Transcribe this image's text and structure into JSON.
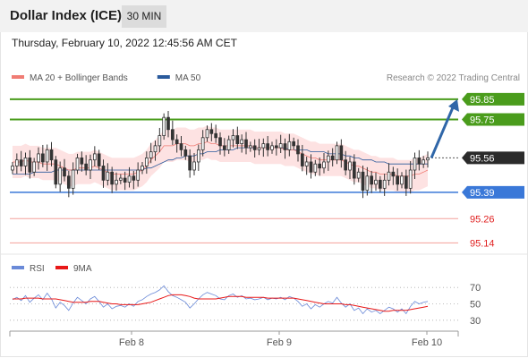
{
  "header": {
    "title": "Dollar Index (ICE)",
    "interval": "30 MIN"
  },
  "timestamp": "Thursday, February 10, 2022 12:45:56 AM CET",
  "legend": {
    "items": [
      {
        "label": "MA 20 + Bollinger Bands",
        "color": "#f07c74"
      },
      {
        "label": "MA 50",
        "color": "#2a5a9c"
      }
    ],
    "credit": "Research © 2022 Trading Central"
  },
  "colors": {
    "resistance": "#4a9c1c",
    "support": "#3a78d8",
    "pivot": "#2b2b2b",
    "target_line": "#f4a09a",
    "candle": "#333333",
    "bollinger_fill": "#fde2e2",
    "ma20": "#f07c74",
    "ma50": "#2a5a9c",
    "arrow": "#2f66a8",
    "rsi": "#6a8ad8",
    "rsi_ma": "#e81818"
  },
  "chart_data": [
    {
      "type": "candlestick",
      "ylim": [
        95.08,
        95.92
      ],
      "x_ticks": [
        "Feb 8",
        "Feb 9",
        "Feb 10"
      ],
      "levels": [
        {
          "value": 95.85,
          "label": "95.85",
          "kind": "resistance"
        },
        {
          "value": 95.75,
          "label": "95.75",
          "kind": "resistance"
        },
        {
          "value": 95.56,
          "label": "95.56",
          "kind": "pivot"
        },
        {
          "value": 95.39,
          "label": "95.39",
          "kind": "support"
        },
        {
          "value": 95.26,
          "label": "95.26",
          "kind": "target"
        },
        {
          "value": 95.14,
          "label": "95.14",
          "kind": "target"
        }
      ],
      "closes": [
        95.52,
        95.55,
        95.52,
        95.56,
        95.49,
        95.54,
        95.58,
        95.54,
        95.6,
        95.55,
        95.43,
        95.51,
        95.47,
        95.41,
        95.5,
        95.56,
        95.53,
        95.5,
        95.55,
        95.58,
        95.52,
        95.45,
        95.49,
        95.43,
        95.45,
        95.46,
        95.44,
        95.47,
        95.45,
        95.5,
        95.52,
        95.56,
        95.59,
        95.62,
        95.67,
        95.76,
        95.7,
        95.65,
        95.63,
        95.6,
        95.57,
        95.5,
        95.54,
        95.6,
        95.66,
        95.7,
        95.68,
        95.66,
        95.62,
        95.6,
        95.65,
        95.67,
        95.63,
        95.65,
        95.61,
        95.62,
        95.6,
        95.61,
        95.63,
        95.6,
        95.62,
        95.61,
        95.63,
        95.6,
        95.64,
        95.62,
        95.58,
        95.52,
        95.54,
        95.49,
        95.53,
        95.51,
        95.54,
        95.57,
        95.55,
        95.62,
        95.55,
        95.5,
        95.54,
        95.46,
        95.49,
        95.4,
        95.47,
        95.43,
        95.45,
        95.41,
        95.45,
        95.49,
        95.47,
        95.43,
        95.47,
        95.41,
        95.5,
        95.56,
        95.53,
        95.55,
        95.56
      ],
      "ma20": [
        95.54,
        95.54,
        95.54,
        95.55,
        95.54,
        95.54,
        95.54,
        95.53,
        95.53,
        95.53,
        95.53,
        95.52,
        95.51,
        95.5,
        95.5,
        95.51,
        95.51,
        95.51,
        95.51,
        95.52,
        95.51,
        95.5,
        95.49,
        95.48,
        95.48,
        95.48,
        95.48,
        95.48,
        95.48,
        95.49,
        95.5,
        95.52,
        95.55,
        95.57,
        95.59,
        95.62,
        95.62,
        95.62,
        95.63,
        95.63,
        95.63,
        95.62,
        95.62,
        95.63,
        95.63,
        95.64,
        95.63,
        95.63,
        95.62,
        95.62,
        95.62,
        95.62,
        95.62,
        95.62,
        95.62,
        95.62,
        95.61,
        95.61,
        95.61,
        95.61,
        95.61,
        95.61,
        95.61,
        95.6,
        95.6,
        95.6,
        95.59,
        95.58,
        95.57,
        95.56,
        95.56,
        95.55,
        95.55,
        95.55,
        95.55,
        95.55,
        95.55,
        95.54,
        95.53,
        95.52,
        95.52,
        95.51,
        95.5,
        95.49,
        95.49,
        95.48,
        95.48,
        95.48,
        95.48,
        95.47,
        95.47,
        95.47,
        95.47,
        95.48,
        95.48,
        95.49,
        95.5
      ],
      "ma50": [
        95.48,
        95.48,
        95.48,
        95.48,
        95.48,
        95.49,
        95.49,
        95.49,
        95.49,
        95.49,
        95.5,
        95.5,
        95.5,
        95.5,
        95.5,
        95.5,
        95.5,
        95.5,
        95.5,
        95.5,
        95.5,
        95.5,
        95.5,
        95.5,
        95.5,
        95.5,
        95.5,
        95.5,
        95.5,
        95.5,
        95.5,
        95.51,
        95.51,
        95.52,
        95.53,
        95.54,
        95.55,
        95.55,
        95.56,
        95.56,
        95.57,
        95.57,
        95.57,
        95.58,
        95.58,
        95.59,
        95.59,
        95.59,
        95.6,
        95.6,
        95.6,
        95.6,
        95.61,
        95.61,
        95.61,
        95.61,
        95.61,
        95.61,
        95.61,
        95.61,
        95.61,
        95.61,
        95.61,
        95.61,
        95.6,
        95.6,
        95.6,
        95.6,
        95.6,
        95.59,
        95.59,
        95.59,
        95.59,
        95.58,
        95.58,
        95.58,
        95.58,
        95.57,
        95.57,
        95.56,
        95.56,
        95.55,
        95.55,
        95.55,
        95.54,
        95.54,
        95.54,
        95.53,
        95.53,
        95.53,
        95.53,
        95.53,
        95.53,
        95.53,
        95.53,
        95.53,
        95.53
      ],
      "bb_width": 0.08,
      "projection": {
        "from": 95.56,
        "to": 95.85
      }
    },
    {
      "type": "line",
      "ylim": [
        20,
        80
      ],
      "y_ticks": [
        70,
        50,
        30
      ],
      "legend": [
        "RSI",
        "9MA"
      ],
      "series": [
        {
          "name": "RSI",
          "values": [
            55,
            58,
            54,
            60,
            52,
            57,
            61,
            55,
            63,
            56,
            45,
            52,
            48,
            42,
            51,
            58,
            54,
            50,
            56,
            59,
            53,
            46,
            50,
            44,
            47,
            48,
            46,
            50,
            47,
            53,
            55,
            59,
            62,
            64,
            67,
            72,
            65,
            60,
            58,
            55,
            52,
            45,
            50,
            56,
            61,
            64,
            62,
            60,
            56,
            55,
            60,
            62,
            58,
            60,
            56,
            57,
            55,
            56,
            58,
            55,
            57,
            56,
            58,
            55,
            59,
            57,
            53,
            47,
            50,
            44,
            49,
            46,
            50,
            53,
            51,
            58,
            51,
            46,
            50,
            42,
            45,
            38,
            44,
            40,
            42,
            38,
            42,
            46,
            44,
            40,
            44,
            38,
            47,
            53,
            50,
            52,
            53
          ]
        },
        {
          "name": "9MA",
          "values": [
            56,
            56,
            56,
            57,
            57,
            57,
            57,
            56,
            56,
            56,
            56,
            55,
            54,
            53,
            52,
            52,
            52,
            52,
            53,
            53,
            53,
            52,
            51,
            50,
            50,
            49,
            49,
            49,
            49,
            49,
            50,
            51,
            52,
            54,
            56,
            58,
            60,
            61,
            61,
            61,
            60,
            59,
            57,
            56,
            56,
            56,
            56,
            56,
            57,
            58,
            59,
            59,
            59,
            59,
            58,
            58,
            58,
            58,
            58,
            57,
            57,
            57,
            57,
            57,
            57,
            57,
            56,
            55,
            54,
            53,
            52,
            51,
            50,
            50,
            50,
            50,
            50,
            49,
            49,
            48,
            47,
            46,
            45,
            44,
            43,
            42,
            41,
            41,
            42,
            42,
            42,
            42,
            43,
            44,
            45,
            46,
            47
          ]
        }
      ]
    }
  ]
}
